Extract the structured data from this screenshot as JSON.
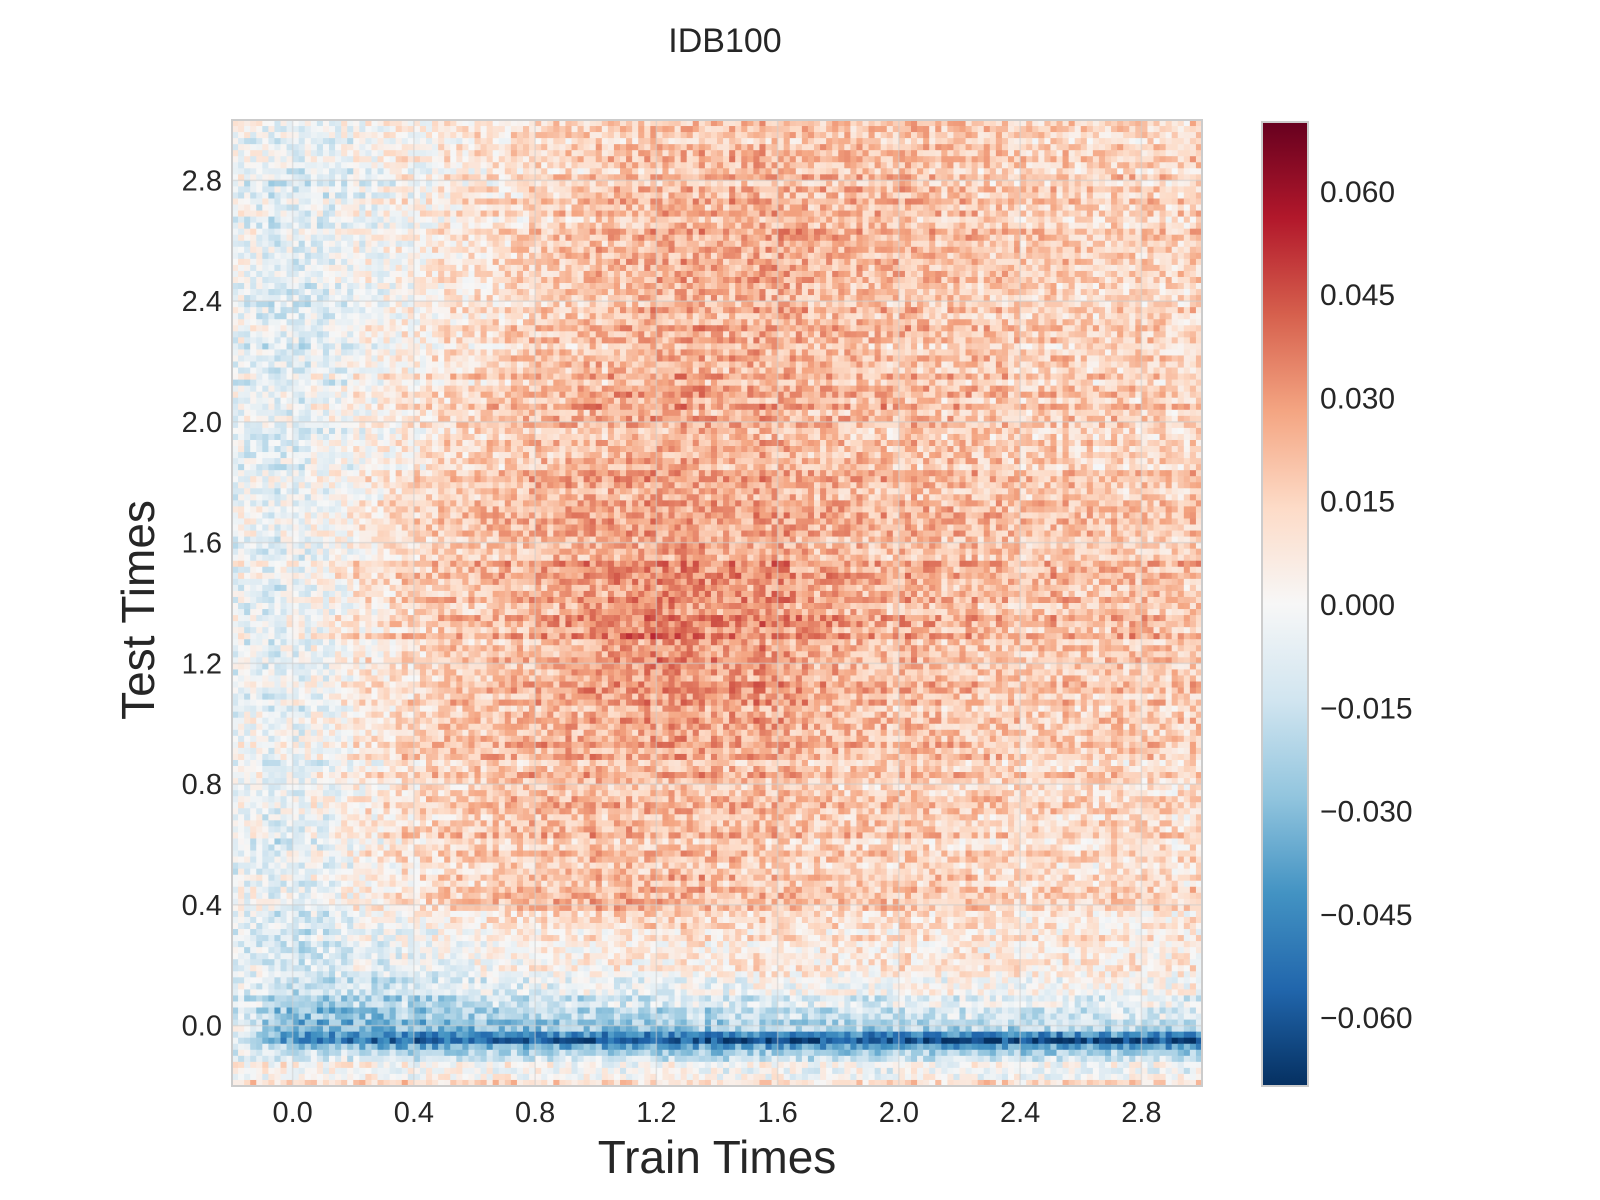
{
  "chart_data": {
    "type": "heatmap",
    "title": "IDB100",
    "xlabel": "Train Times",
    "ylabel": "Test Times",
    "xlim": [
      -0.2,
      3.0
    ],
    "ylim": [
      -0.2,
      3.0
    ],
    "x_ticks": [
      "0.0",
      "0.4",
      "0.8",
      "1.2",
      "1.6",
      "2.0",
      "2.4",
      "2.8"
    ],
    "y_ticks": [
      "0.0",
      "0.4",
      "0.8",
      "1.2",
      "1.6",
      "2.0",
      "2.4",
      "2.8"
    ],
    "colormap": "RdBu_r",
    "color_range": [
      -0.07,
      0.07
    ],
    "colorbar_ticks": [
      "0.060",
      "0.045",
      "0.030",
      "0.015",
      "0.000",
      "−0.015",
      "−0.030",
      "−0.045",
      "−0.060"
    ],
    "grid": true,
    "value_summary": {
      "columns_x": [
        -0.2,
        0.0,
        0.4,
        0.8,
        1.2,
        1.6,
        2.0,
        2.4,
        2.8,
        3.0
      ],
      "rows_y": [
        -0.2,
        -0.1,
        -0.05,
        0.0,
        0.1,
        0.2,
        0.4,
        0.8,
        1.2,
        1.4,
        1.6,
        2.0,
        2.4,
        2.8,
        3.0
      ],
      "values": [
        [
          0.01,
          0.01,
          0.012,
          0.012,
          0.012,
          0.012,
          0.01,
          0.01,
          0.01,
          0.01
        ],
        [
          -0.005,
          -0.002,
          -0.008,
          -0.01,
          -0.012,
          -0.012,
          -0.012,
          -0.012,
          -0.012,
          -0.012
        ],
        [
          -0.01,
          -0.045,
          -0.055,
          -0.058,
          -0.06,
          -0.06,
          -0.062,
          -0.062,
          -0.062,
          -0.062
        ],
        [
          -0.01,
          -0.035,
          -0.03,
          -0.028,
          -0.025,
          -0.022,
          -0.02,
          -0.018,
          -0.015,
          -0.015
        ],
        [
          -0.008,
          -0.02,
          -0.015,
          -0.01,
          -0.008,
          -0.006,
          -0.004,
          -0.003,
          -0.002,
          -0.002
        ],
        [
          -0.006,
          -0.012,
          -0.006,
          0.0,
          0.004,
          0.006,
          0.006,
          0.006,
          0.005,
          0.005
        ],
        [
          -0.004,
          -0.008,
          0.01,
          0.018,
          0.022,
          0.018,
          0.015,
          0.012,
          0.012,
          0.012
        ],
        [
          -0.004,
          -0.006,
          0.014,
          0.02,
          0.022,
          0.02,
          0.016,
          0.014,
          0.012,
          0.012
        ],
        [
          -0.004,
          -0.004,
          0.016,
          0.022,
          0.034,
          0.03,
          0.022,
          0.02,
          0.02,
          0.02
        ],
        [
          -0.004,
          -0.004,
          0.018,
          0.024,
          0.036,
          0.032,
          0.024,
          0.022,
          0.022,
          0.022
        ],
        [
          -0.004,
          -0.004,
          0.016,
          0.022,
          0.028,
          0.026,
          0.022,
          0.02,
          0.018,
          0.018
        ],
        [
          -0.004,
          -0.006,
          0.01,
          0.02,
          0.026,
          0.024,
          0.02,
          0.018,
          0.016,
          0.016
        ],
        [
          -0.004,
          -0.01,
          0.004,
          0.014,
          0.024,
          0.024,
          0.02,
          0.016,
          0.014,
          0.014
        ],
        [
          -0.004,
          -0.01,
          0.002,
          0.01,
          0.022,
          0.022,
          0.02,
          0.016,
          0.014,
          0.014
        ],
        [
          -0.002,
          -0.006,
          0.004,
          0.01,
          0.018,
          0.018,
          0.016,
          0.014,
          0.012,
          0.012
        ]
      ]
    }
  }
}
